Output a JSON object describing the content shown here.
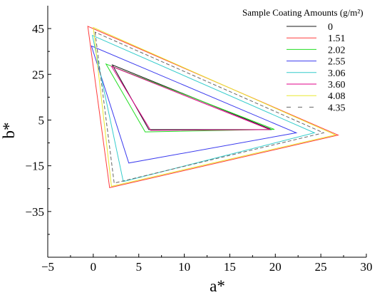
{
  "chart_data": {
    "type": "line",
    "xlabel": "a*",
    "ylabel": "b*",
    "xlim": [
      -5,
      30
    ],
    "ylim": [
      -55,
      55
    ],
    "xticks": [
      -5,
      0,
      5,
      10,
      15,
      20,
      25,
      30
    ],
    "yticks": [
      -35,
      -15,
      5,
      25,
      45
    ],
    "x_tick_labels": [
      "−5",
      "0",
      "5",
      "10",
      "15",
      "20",
      "25",
      "30"
    ],
    "y_tick_labels": [
      "−35",
      "−15",
      "5",
      "25",
      "45"
    ],
    "grid": false,
    "legend": {
      "title": "Sample Coating Amounts (g/m²)",
      "placement": "top-right"
    },
    "series": [
      {
        "name": "0",
        "color": "#1a1a1a",
        "dash": "solid",
        "points": [
          [
            2.1,
            29.1
          ],
          [
            6.1,
            0.8
          ],
          [
            19.6,
            0.8
          ]
        ]
      },
      {
        "name": "1.51",
        "color": "#ff3b3b",
        "dash": "solid",
        "points": [
          [
            -0.6,
            46.0
          ],
          [
            1.8,
            -24.6
          ],
          [
            26.9,
            -1.6
          ]
        ]
      },
      {
        "name": "2.02",
        "color": "#22dd22",
        "dash": "solid",
        "points": [
          [
            1.4,
            29.5
          ],
          [
            5.7,
            -0.2
          ],
          [
            19.9,
            0.9
          ]
        ]
      },
      {
        "name": "2.55",
        "color": "#3a3aee",
        "dash": "solid",
        "points": [
          [
            -0.2,
            37.4
          ],
          [
            3.9,
            -13.8
          ],
          [
            22.3,
            -0.6
          ]
        ]
      },
      {
        "name": "3.06",
        "color": "#33cccc",
        "dash": "solid",
        "points": [
          [
            -0.1,
            42.0
          ],
          [
            3.3,
            -21.9
          ],
          [
            24.3,
            -0.6
          ]
        ]
      },
      {
        "name": "3.60",
        "color": "#e00088",
        "dash": "solid",
        "points": [
          [
            2.0,
            28.5
          ],
          [
            6.3,
            0.5
          ],
          [
            19.4,
            0.8
          ]
        ]
      },
      {
        "name": "4.08",
        "color": "#e8e830",
        "dash": "solid",
        "points": [
          [
            0.0,
            45.5
          ],
          [
            2.0,
            -24.0
          ],
          [
            26.6,
            -1.5
          ]
        ]
      },
      {
        "name": "4.35",
        "color": "#666666",
        "dash": "dashed",
        "points": [
          [
            0.2,
            43.4
          ],
          [
            2.3,
            -22.6
          ],
          [
            25.3,
            -0.6
          ]
        ]
      }
    ]
  }
}
